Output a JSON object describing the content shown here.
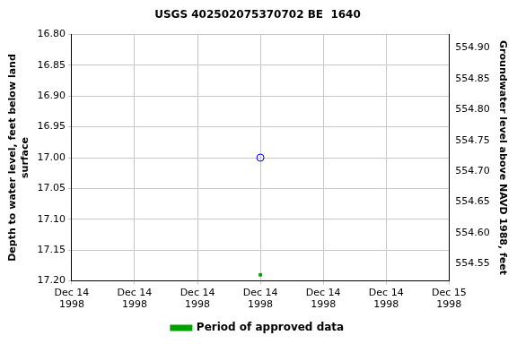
{
  "chart_data": {
    "type": "scatter",
    "title": "USGS 402502075370702 BE  1640",
    "y_label": "Depth to water level, feet below land\nsurface",
    "y2_label": "Groundwater level above NAVD 1988, feet",
    "categories": [
      "Dec 14\n1998",
      "Dec 14\n1998",
      "Dec 14\n1998",
      "Dec 14\n1998",
      "Dec 14\n1998",
      "Dec 14\n1998",
      "Dec 15\n1998"
    ],
    "series": [
      {
        "color": "#0000ff",
        "marker": "circle_open",
        "values": [
          null,
          null,
          null,
          17.0,
          null,
          null,
          null
        ]
      },
      {
        "name": "Period of approved data",
        "color": "#00a000",
        "marker": "square",
        "values": [
          null,
          null,
          null,
          17.19,
          null,
          null,
          null
        ]
      }
    ],
    "ylim": [
      17.2,
      16.8
    ],
    "yticks": [
      {
        "value": 16.8,
        "label": "16.80"
      },
      16.85,
      {
        "value": 16.9,
        "label": "16.90"
      },
      16.95,
      {
        "value": 17.0,
        "label": "17.00"
      },
      17.05,
      {
        "value": 17.1,
        "label": "17.10"
      },
      17.15,
      {
        "value": 17.2,
        "label": "17.20"
      }
    ],
    "y2lim": [
      554.522,
      554.922
    ],
    "y2ticks": [
      554.55,
      {
        "value": 554.6,
        "label": "554.60"
      },
      554.65,
      {
        "value": 554.7,
        "label": "554.70"
      },
      554.75,
      {
        "value": 554.8,
        "label": "554.80"
      },
      554.85,
      {
        "value": 554.9,
        "label": "554.90"
      }
    ],
    "grid": true,
    "legend": "bottom"
  }
}
